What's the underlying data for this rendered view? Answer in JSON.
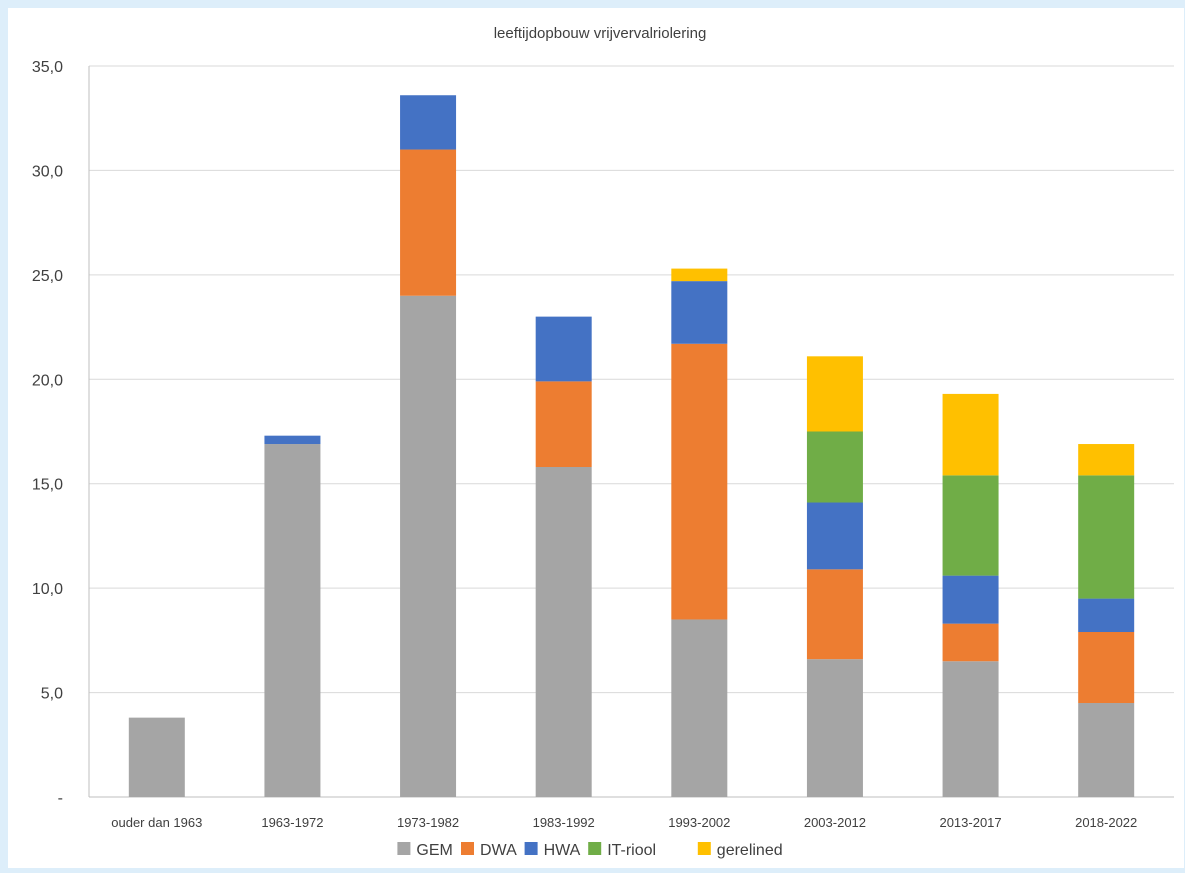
{
  "chart_data": {
    "type": "bar",
    "stacked": true,
    "title": "leeftijdopbouw vrijvervalriolering",
    "xlabel": "",
    "ylabel": "",
    "ylim": [
      0,
      35
    ],
    "yticks": [
      0,
      5,
      10,
      15,
      20,
      25,
      30,
      35
    ],
    "ytick_labels": [
      "-",
      "5,0",
      "10,0",
      "15,0",
      "20,0",
      "25,0",
      "30,0",
      "35,0"
    ],
    "grid": true,
    "legend_position": "bottom",
    "categories": [
      "ouder dan 1963",
      "1963-1972",
      "1973-1982",
      "1983-1992",
      "1993-2002",
      "2003-2012",
      "2013-2017",
      "2018-2022"
    ],
    "series": [
      {
        "name": "GEM",
        "color": "#a5a5a5",
        "values": [
          3.8,
          16.9,
          24.0,
          15.8,
          8.5,
          6.6,
          6.5,
          4.5
        ]
      },
      {
        "name": "DWA",
        "color": "#ed7d31",
        "values": [
          0,
          0,
          7.0,
          4.1,
          13.2,
          4.3,
          1.8,
          3.4
        ]
      },
      {
        "name": "HWA",
        "color": "#4472c4",
        "values": [
          0,
          0.4,
          2.6,
          3.1,
          3.0,
          3.2,
          2.3,
          1.6
        ]
      },
      {
        "name": "IT-riool",
        "color": "#70ad47",
        "values": [
          0,
          0,
          0,
          0,
          0,
          3.4,
          4.8,
          5.9
        ]
      },
      {
        "name": "gerelined",
        "color": "#ffc000",
        "values": [
          0,
          0,
          0,
          0,
          0.6,
          3.6,
          3.9,
          1.5
        ]
      }
    ]
  }
}
